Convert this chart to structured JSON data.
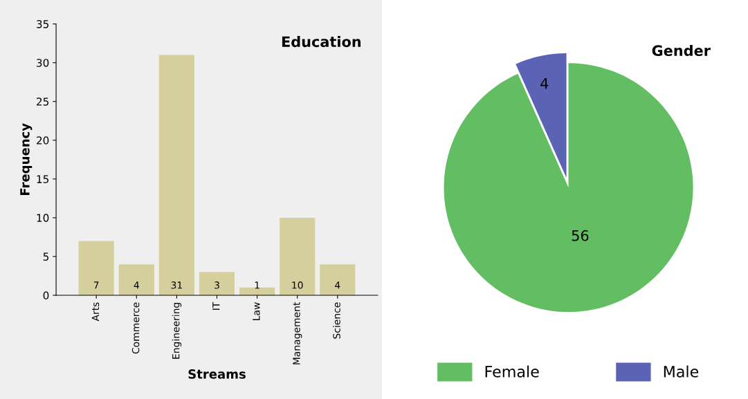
{
  "chart_data": [
    {
      "type": "bar",
      "title": "Education",
      "xlabel": "Streams",
      "ylabel": "Frequency",
      "categories": [
        "Arts",
        "Commerce",
        "Engineering",
        "IT",
        "Law",
        "Management",
        "Science"
      ],
      "values": [
        7,
        4,
        31,
        3,
        1,
        10,
        4
      ],
      "color": "#d4cf9c",
      "ylim": [
        0,
        35
      ],
      "yticks": [
        0,
        5,
        10,
        15,
        20,
        25,
        30,
        35
      ],
      "grid": false,
      "data_labels": true
    },
    {
      "type": "pie",
      "title": "Gender",
      "categories": [
        "Female",
        "Male"
      ],
      "values": [
        56,
        4
      ],
      "colors": [
        "#63bd63",
        "#5b63b5"
      ],
      "data_labels": true,
      "legend": "bottom"
    }
  ]
}
